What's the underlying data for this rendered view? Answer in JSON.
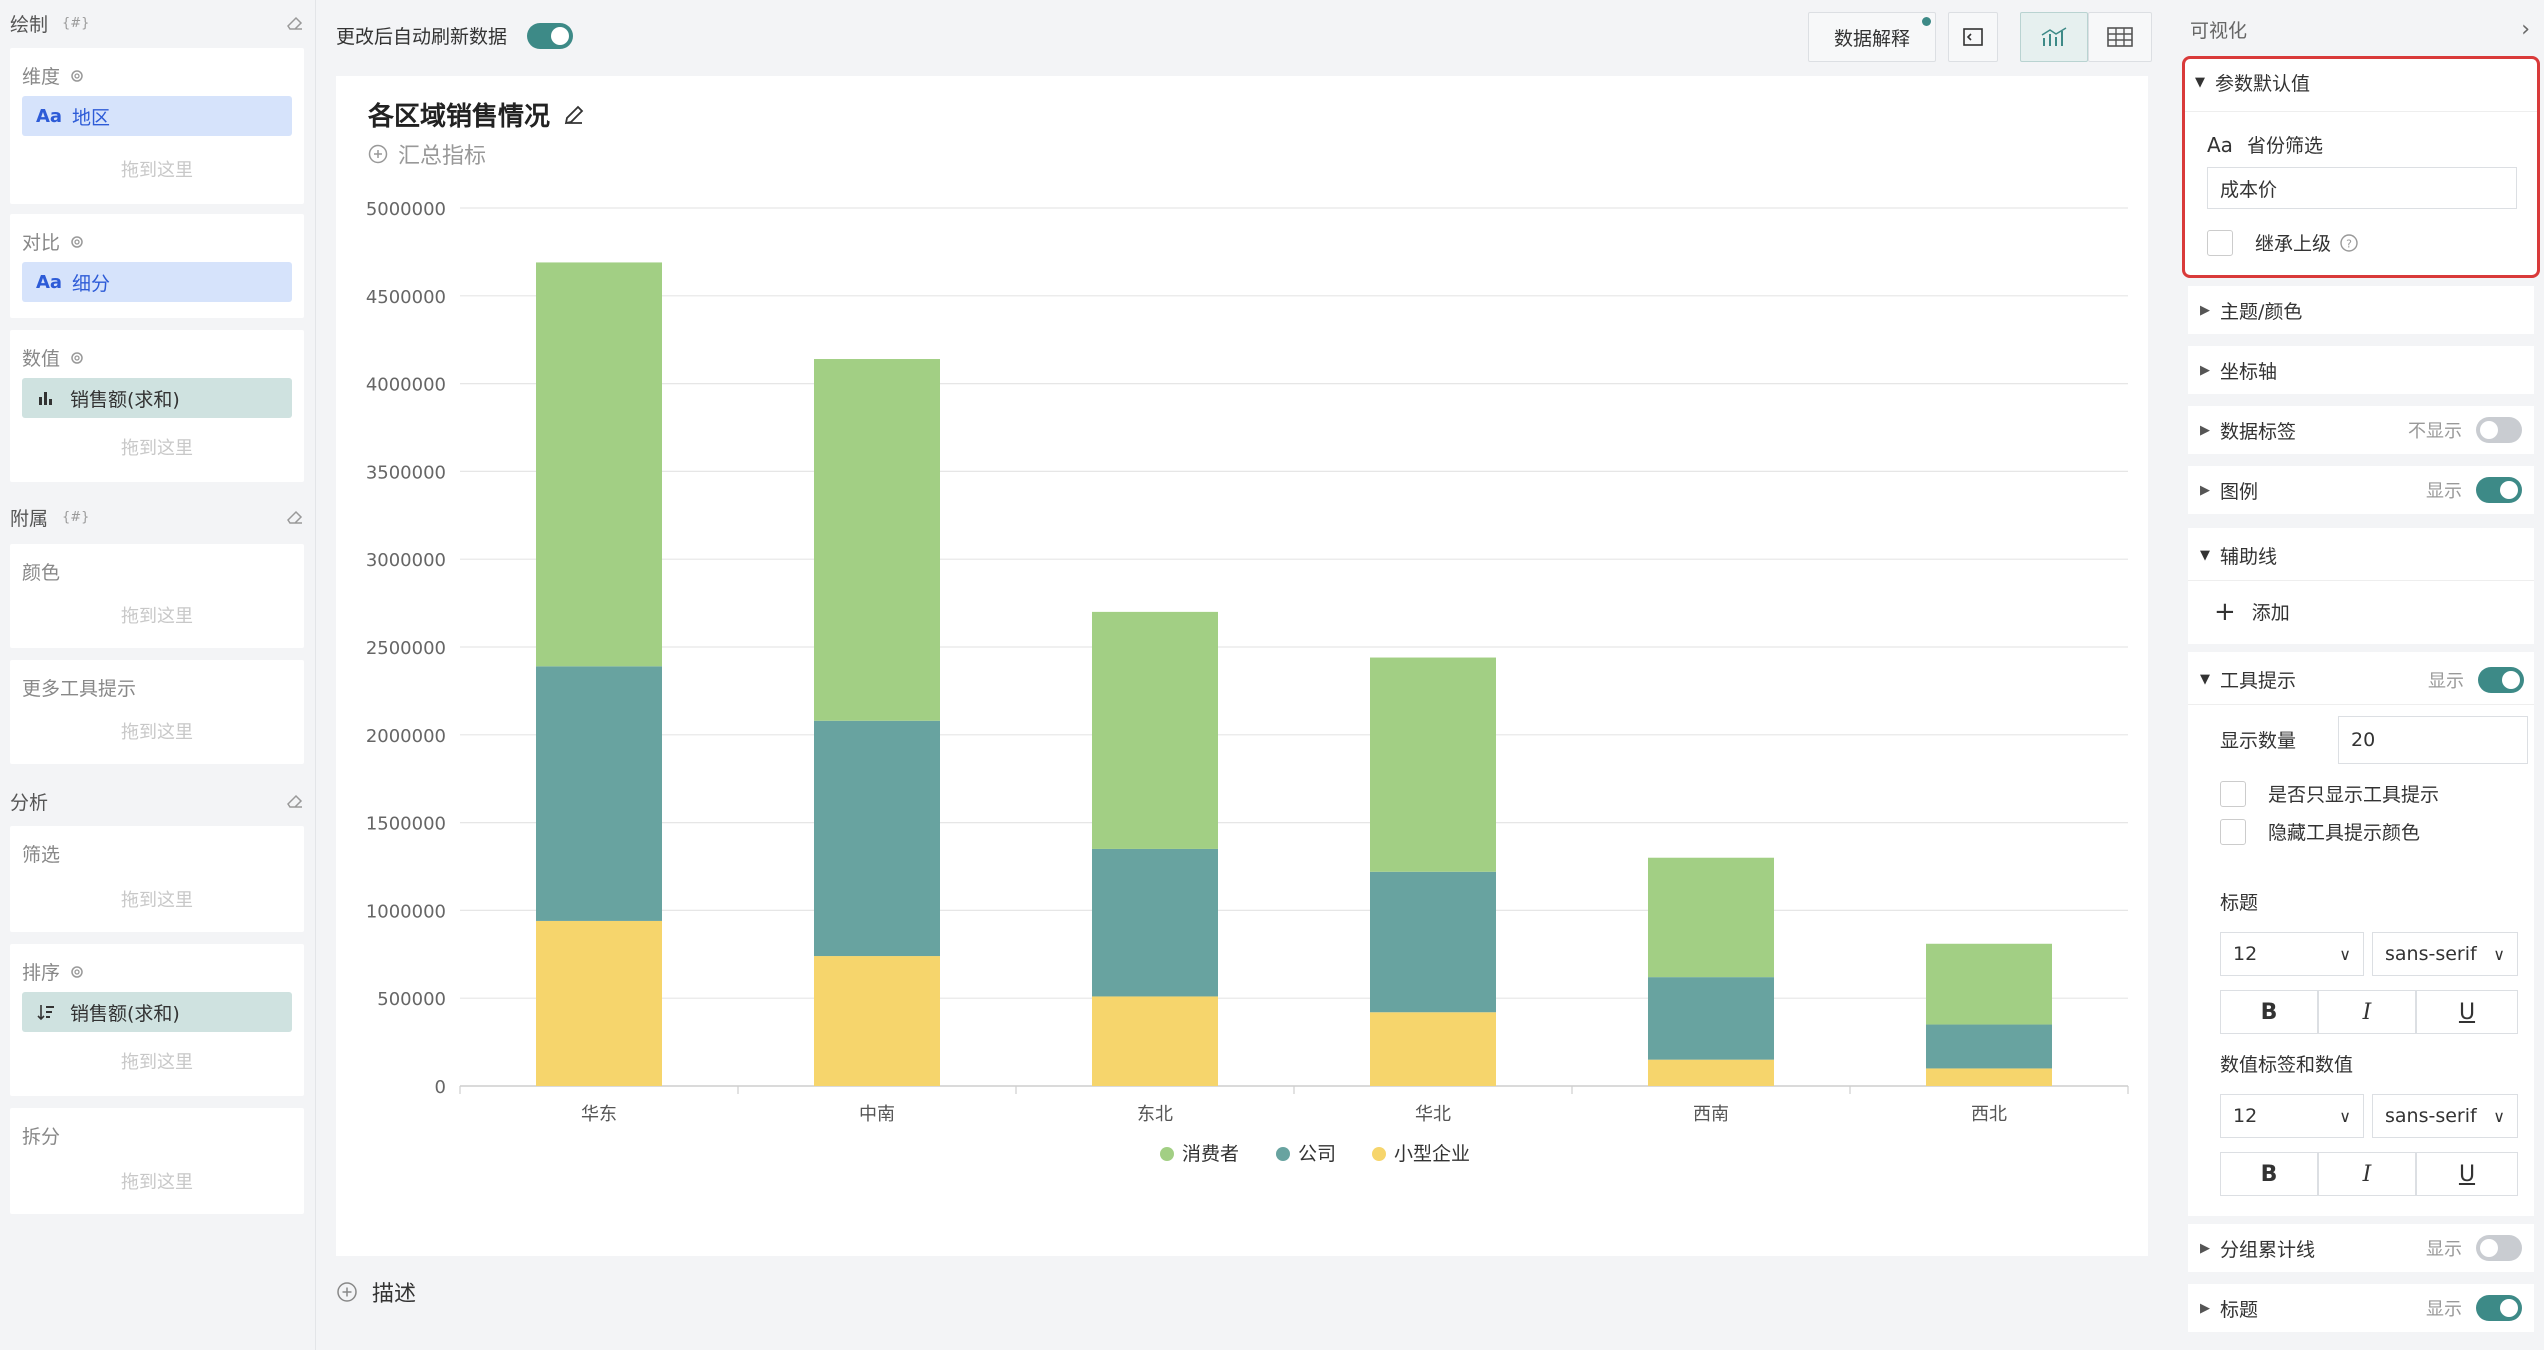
{
  "left": {
    "draw": {
      "title": "绘制",
      "tag": "{#}"
    },
    "dimension": {
      "label": "维度",
      "pill": "地区",
      "pill_icon": "Aa",
      "drop": "拖到这里"
    },
    "compare": {
      "label": "对比",
      "pill": "细分",
      "pill_icon": "Aa"
    },
    "values": {
      "label": "数值",
      "pill": "销售额(求和)",
      "drop": "拖到这里"
    },
    "attach": {
      "title": "附属",
      "tag": "{#}"
    },
    "color": {
      "label": "颜色",
      "drop": "拖到这里"
    },
    "tooltip_more": {
      "label": "更多工具提示",
      "drop": "拖到这里"
    },
    "analysis": {
      "title": "分析"
    },
    "filter": {
      "label": "筛选",
      "drop": "拖到这里"
    },
    "sort": {
      "label": "排序",
      "pill": "销售额(求和)",
      "drop": "拖到这里"
    },
    "split": {
      "label": "拆分",
      "drop": "拖到这里"
    }
  },
  "toolbar": {
    "auto_refresh_label": "更改后自动刷新数据",
    "auto_refresh_on": true,
    "explain_label": "数据解释"
  },
  "chart_card": {
    "title": "各区域销售情况",
    "summary": "汇总指标",
    "describe": "描述"
  },
  "chart_data": {
    "type": "bar",
    "stacked": true,
    "categories": [
      "华东",
      "中南",
      "东北",
      "华北",
      "西南",
      "西北"
    ],
    "series": [
      {
        "name": "小型企业",
        "color": "#f6d56c",
        "values": [
          940000,
          740000,
          510000,
          420000,
          150000,
          100000
        ]
      },
      {
        "name": "公司",
        "color": "#68a3a0",
        "values": [
          1450000,
          1340000,
          840000,
          800000,
          470000,
          250000
        ]
      },
      {
        "name": "消费者",
        "color": "#a2cf84",
        "values": [
          2300000,
          2060000,
          1350000,
          1220000,
          680000,
          460000
        ]
      }
    ],
    "y_ticks": [
      "0",
      "500000",
      "1000000",
      "1500000",
      "2000000",
      "2500000",
      "3000000",
      "3500000",
      "4000000",
      "4500000",
      "5000000"
    ],
    "ylim": [
      0,
      5000000
    ],
    "grid": true,
    "legend_position": "bottom-center"
  },
  "right": {
    "header": "可视化",
    "param_default": {
      "title": "参数默认值",
      "field_icon": "Aa",
      "field_label": "省份筛选",
      "value": "成本价",
      "inherit_label": "继承上级"
    },
    "theme": "主题/颜色",
    "axis": "坐标轴",
    "data_label": {
      "title": "数据标签",
      "state": "不显示"
    },
    "legend": {
      "title": "图例",
      "state": "显示"
    },
    "aux_line": {
      "title": "辅助线",
      "add": "添加"
    },
    "tooltip": {
      "title": "工具提示",
      "state": "显示",
      "count_label": "显示数量",
      "count_value": "20",
      "only_tooltip": "是否只显示工具提示",
      "hide_color": "隐藏工具提示颜色",
      "title_label": "标题",
      "title_size": "12",
      "title_font": "sans-serif",
      "value_label": "数值标签和数值",
      "value_size": "12",
      "value_font": "sans-serif",
      "bold": "B",
      "italic": "I",
      "underline": "U"
    },
    "cumulative": {
      "title": "分组累计线",
      "state": "显示"
    },
    "title_row": {
      "title": "标题",
      "state": "显示"
    }
  }
}
